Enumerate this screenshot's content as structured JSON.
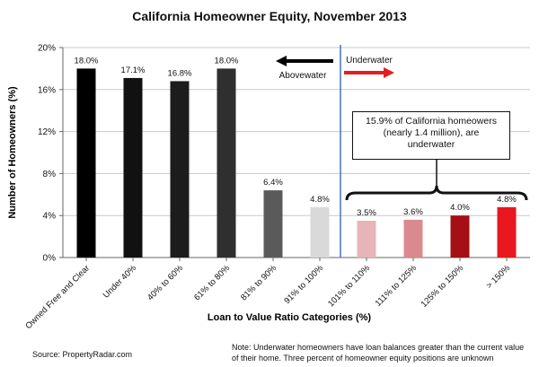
{
  "chart_data": {
    "type": "bar",
    "title": "California Homeowner Equity, November 2013",
    "xlabel": "Loan to Value Ratio Categories (%)",
    "ylabel": "Number of Homeowners (%)",
    "ylim": [
      0,
      20
    ],
    "yticks": [
      "0%",
      "4%",
      "8%",
      "12%",
      "16%",
      "20%"
    ],
    "grid": true,
    "categories": [
      "Owned Free and Clear",
      "Under 40%",
      "40% to 60%",
      "61% to 80%",
      "81% to 90%",
      "91% to 100%",
      "101% to 110%",
      "111% to 125%",
      "125% to 150%",
      "> 150%"
    ],
    "values": [
      18.0,
      17.1,
      16.8,
      18.0,
      6.4,
      4.8,
      3.5,
      3.6,
      4.0,
      4.8
    ],
    "labels": [
      "18.0%",
      "17.1%",
      "16.8%",
      "18.0%",
      "6.4%",
      "4.8%",
      "3.5%",
      "3.6%",
      "4.0%",
      "4.8%"
    ],
    "colors": [
      "#000000",
      "#111111",
      "#1c1c1c",
      "#2f2f2f",
      "#5a5a5a",
      "#d9d9d9",
      "#e8b4b8",
      "#d98a8f",
      "#a50f15",
      "#e8181e"
    ],
    "annotations": {
      "abovewater": "Abovewater",
      "underwater": "Underwater",
      "callout": "15.9% of California homeowers (nearly 1.4 million), are underwater"
    },
    "arrow_colors": {
      "abovewater": "#000000",
      "underwater": "#e02020",
      "divider": "#4472c4"
    }
  },
  "footer": {
    "source": "Source: PropertyRadar.com",
    "note": "Note: Underwater homeowners have loan balances greater than the current value of their home. Three percent of homeowner equity positions are unknown"
  }
}
